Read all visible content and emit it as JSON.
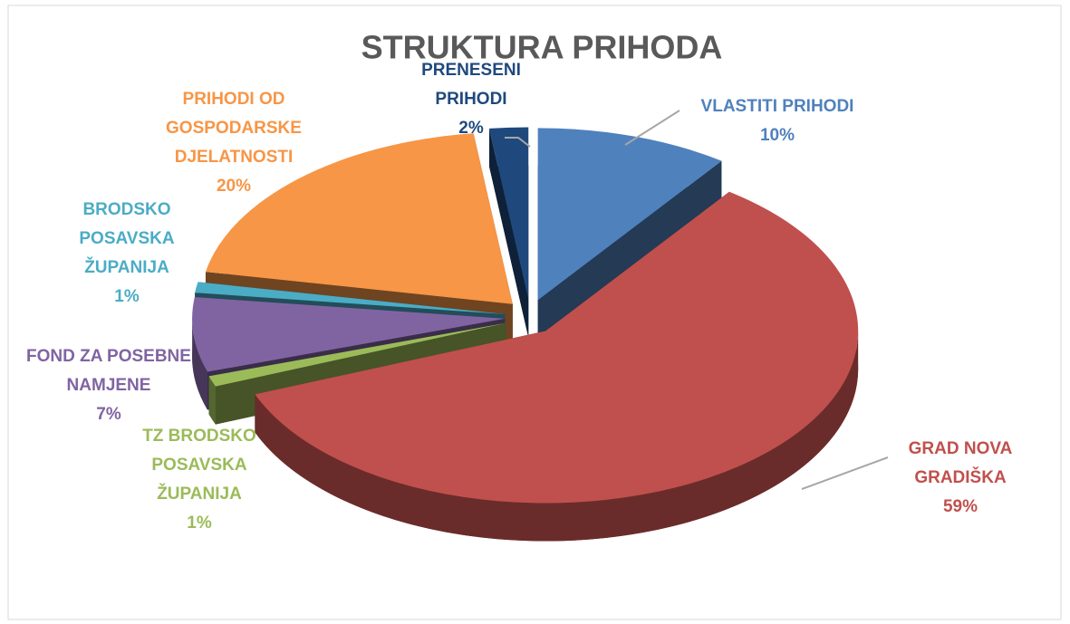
{
  "chart_data": {
    "type": "pie",
    "title": "STRUKTURA PRIHODA",
    "categories": [
      "VLASTITI PRIHODI",
      "GRAD NOVA GRADIŠKA",
      "TZ BRODSKO POSAVSKA ŽUPANIJA",
      "FOND ZA POSEBNE NAMJENE",
      "BRODSKO POSAVSKA ŽUPANIJA",
      "PRIHODI OD GOSPODARSKE DJELATNOSTI",
      "PRENESENI PRIHODI"
    ],
    "values": [
      10,
      59,
      1,
      7,
      1,
      20,
      2
    ],
    "value_labels": [
      "10%",
      "59%",
      "1%",
      "7%",
      "1%",
      "20%",
      "2%"
    ],
    "colors": [
      "#4f81bd",
      "#c0504d",
      "#9bbb59",
      "#8064a2",
      "#4bacc6",
      "#f79646",
      "#1f497d"
    ]
  }
}
